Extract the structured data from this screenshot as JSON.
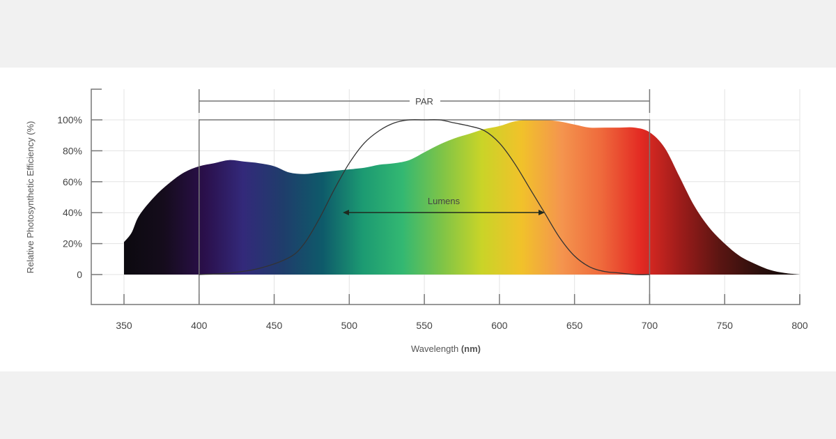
{
  "chart_data": {
    "type": "area",
    "title": "",
    "xlabel": "Wavelength",
    "xlabel_unit": "(nm)",
    "ylabel": "Relative Photosynthetic Efficiency (%)",
    "xlim": [
      350,
      800
    ],
    "ylim": [
      0,
      100
    ],
    "x_ticks": [
      "350",
      "400",
      "450",
      "500",
      "550",
      "600",
      "650",
      "700",
      "750",
      "800"
    ],
    "y_ticks": [
      "0",
      "20%",
      "40%",
      "60%",
      "80%",
      "100%"
    ],
    "grid": true,
    "series": [
      {
        "name": "Relative Photosynthetic Efficiency (spectrum fill)",
        "x": [
          350,
          355,
          360,
          370,
          380,
          390,
          400,
          410,
          420,
          430,
          440,
          450,
          460,
          470,
          480,
          490,
          500,
          510,
          520,
          530,
          540,
          550,
          560,
          570,
          580,
          590,
          600,
          610,
          620,
          630,
          640,
          650,
          660,
          670,
          680,
          690,
          700,
          710,
          720,
          730,
          740,
          750,
          760,
          770,
          780,
          790,
          800
        ],
        "values": [
          21,
          27,
          38,
          50,
          59,
          66,
          70,
          72,
          74,
          73,
          72,
          70,
          66,
          65,
          66,
          67,
          68,
          69,
          71,
          72,
          74,
          79,
          84,
          88,
          91,
          94,
          96,
          99,
          100,
          100,
          99,
          97,
          95,
          95,
          95,
          95,
          92,
          82,
          63,
          44,
          30,
          20,
          12,
          7,
          3,
          1,
          0
        ]
      },
      {
        "name": "Lumens (photopic response)",
        "x": [
          400,
          420,
          440,
          460,
          470,
          480,
          490,
          500,
          510,
          520,
          530,
          540,
          550,
          560,
          570,
          580,
          590,
          600,
          610,
          620,
          630,
          640,
          650,
          660,
          670,
          680,
          690,
          700
        ],
        "values": [
          0,
          1,
          4,
          11,
          20,
          36,
          55,
          72,
          85,
          93,
          98,
          100,
          100,
          100,
          98,
          96,
          93,
          85,
          72,
          56,
          40,
          24,
          12,
          5,
          2,
          1,
          0,
          0
        ]
      }
    ],
    "annotations": [
      {
        "label": "PAR",
        "type": "bracket",
        "x_start": 400,
        "x_end": 700
      },
      {
        "label": "Lumens",
        "type": "double-arrow",
        "x_start": 495,
        "x_end": 630,
        "y": 40
      }
    ],
    "spectrum_colors": [
      "#0c0a0f",
      "#150c1c",
      "#2a0f4a",
      "#33297a",
      "#1f3d6b",
      "#0e5a6a",
      "#1c9a72",
      "#33b872",
      "#7fc447",
      "#c9d428",
      "#f1c22a",
      "#f4954e",
      "#ef6a3c",
      "#e32a23",
      "#9c1c1a",
      "#5a1512",
      "#2b0f0c",
      "#0c0808"
    ]
  },
  "labels": {
    "par": "PAR",
    "lumens": "Lumens",
    "xlabel": "Wavelength",
    "xlabel_unit": "(nm)",
    "ylabel": "Relative Photosynthetic Efficiency (%)"
  }
}
